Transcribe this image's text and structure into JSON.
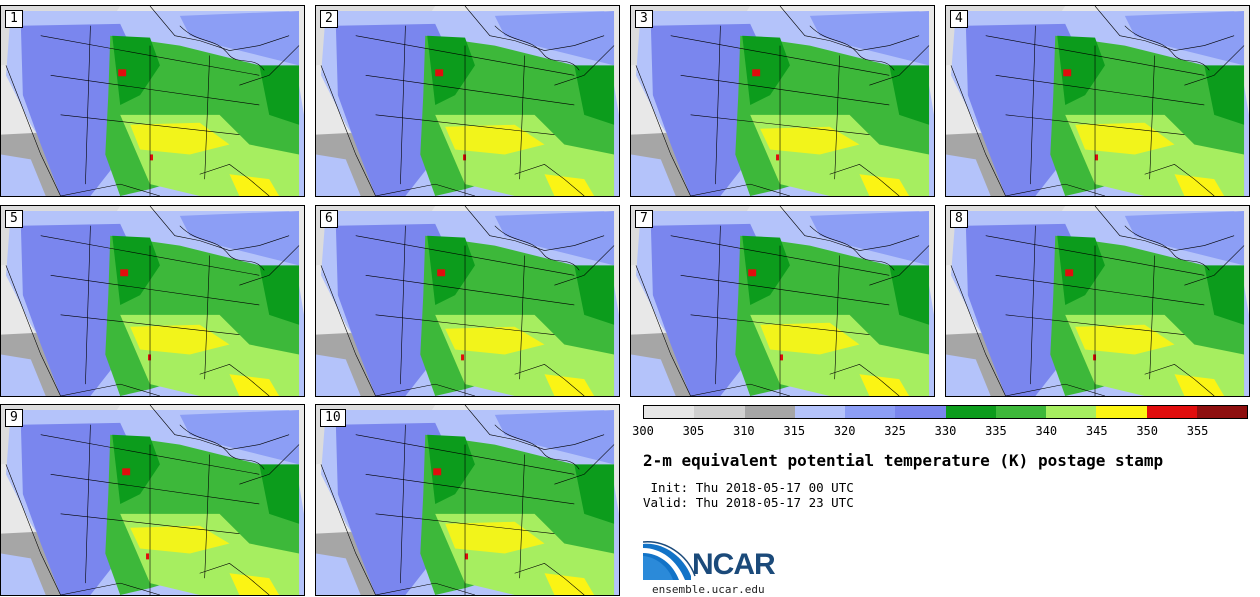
{
  "title": "2-m equivalent potential temperature (K) postage stamp",
  "init_label": "Init:",
  "init_value": "Thu 2018-05-17 00 UTC",
  "valid_label": "Valid:",
  "valid_value": "Thu 2018-05-17 23 UTC",
  "logo_text": "NCAR",
  "site": "ensemble.ucar.edu",
  "members": [
    "1",
    "2",
    "3",
    "4",
    "5",
    "6",
    "7",
    "8",
    "9",
    "10"
  ],
  "colorbar": {
    "ticks": [
      "300",
      "305",
      "310",
      "315",
      "320",
      "325",
      "330",
      "335",
      "340",
      "345",
      "350",
      "355"
    ],
    "colors": [
      "#e6e6e6",
      "#d0d0d0",
      "#a6a6a6",
      "#b4c3fa",
      "#8c9ef5",
      "#7a86ee",
      "#0c9c1c",
      "#3db83a",
      "#a6ee60",
      "#fbf414",
      "#e10d0d",
      "#8e0f0f"
    ]
  },
  "map_colors": {
    "ocean_gray": "#a6a6a6",
    "canada_light": "#e8e8e8",
    "west_purple": "#7a86ee",
    "pacific_blue": "#b4c3fa",
    "green": "#3db83a",
    "dark_green": "#0c9c1c",
    "light_green": "#a6ee60",
    "yellow": "#fbf414",
    "red": "#e10d0d"
  }
}
